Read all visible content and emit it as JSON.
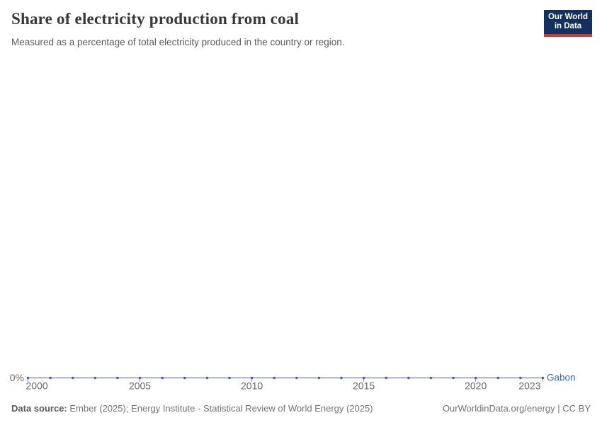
{
  "header": {
    "title": "Share of electricity production from coal",
    "subtitle": "Measured as a percentage of total electricity produced in the country or region.",
    "logo": {
      "line1": "Our World",
      "line2": "in Data",
      "bg_color": "#13315f",
      "bar_color": "#d8352b"
    }
  },
  "chart_data": {
    "type": "line",
    "title": "Share of electricity production from coal",
    "unit": "%",
    "x": [
      2000,
      2001,
      2002,
      2003,
      2004,
      2005,
      2006,
      2007,
      2008,
      2009,
      2010,
      2011,
      2012,
      2013,
      2014,
      2015,
      2016,
      2017,
      2018,
      2019,
      2020,
      2021,
      2022,
      2023
    ],
    "series": [
      {
        "name": "Gabon",
        "color": "#4165ad",
        "values": [
          0,
          0,
          0,
          0,
          0,
          0,
          0,
          0,
          0,
          0,
          0,
          0,
          0,
          0,
          0,
          0,
          0,
          0,
          0,
          0,
          0,
          0,
          0,
          0
        ]
      }
    ],
    "xticks": [
      2000,
      2005,
      2010,
      2015,
      2020,
      2023
    ],
    "yticks": [
      {
        "value": 0,
        "label": "0%"
      }
    ],
    "grid": false,
    "legend_position": "end-of-line"
  },
  "colors": {
    "axis_text": "#676767",
    "tick_mark": "#8c8c8c",
    "line_stroke": "#5b7fc4"
  },
  "footer": {
    "source_label": "Data source:",
    "source_text": " Ember (2025); Energy Institute - Statistical Review of World Energy (2025)",
    "note": "OurWorldinData.org/energy | CC BY"
  }
}
